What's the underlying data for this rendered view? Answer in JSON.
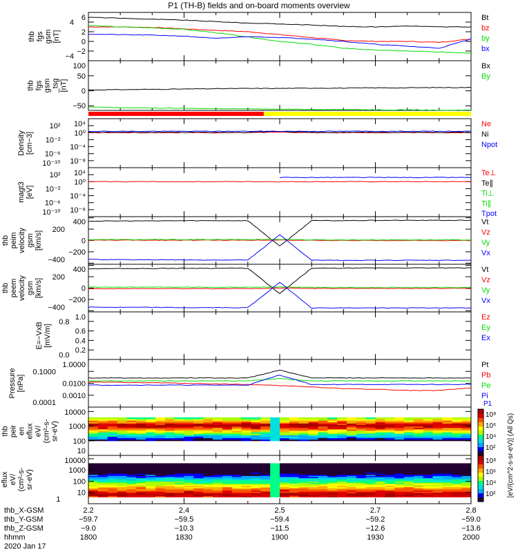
{
  "title": "P1 (TH-B) fields and on-board moments overview",
  "chart_data": {
    "type": "line",
    "x_minutes": [
      0,
      10,
      20,
      30,
      40,
      50,
      60,
      70,
      80,
      90,
      100,
      110,
      120
    ],
    "panels": [
      {
        "id": "fgs",
        "ylabel": [
          "thb",
          "fgs",
          "gsm",
          "[nT]"
        ],
        "scale": "linear",
        "ylim": [
          -4,
          6
        ],
        "ticks": [
          {
            "v": 6,
            "t": "6"
          },
          {
            "v": 4,
            "t": "4"
          },
          {
            "v": 2,
            "t": "2"
          },
          {
            "v": 0,
            "t": "0"
          },
          {
            "v": -2,
            "t": "−2"
          },
          {
            "v": -4,
            "t": "−4"
          }
        ],
        "series": [
          {
            "name": "Bt",
            "color": "#000000",
            "values": [
              5,
              4.8,
              4.6,
              4.4,
              4.1,
              3.8,
              3.6,
              3.4,
              3.1,
              3.0,
              3.2,
              3.0,
              3.0
            ]
          },
          {
            "name": "bz",
            "color": "#ff0000",
            "values": [
              3,
              3,
              2.9,
              2.6,
              2.3,
              2.0,
              1.4,
              0.8,
              0.2,
              0.0,
              0.0,
              -0.2,
              0.5
            ]
          },
          {
            "name": "by",
            "color": "#00dd00",
            "values": [
              3.3,
              3.0,
              2.8,
              2.5,
              1.8,
              0.9,
              0.0,
              -0.6,
              -1.4,
              -1.8,
              -2.0,
              -2.2,
              -2.4
            ]
          },
          {
            "name": "bx",
            "color": "#0000ff",
            "values": [
              1.5,
              1.4,
              1.3,
              1.1,
              0.6,
              1.0,
              0.8,
              0.5,
              0.0,
              -0.6,
              -1.0,
              -1.4,
              0.5
            ]
          }
        ]
      },
      {
        "id": "fgs_dsl",
        "ylabel": [
          "thb",
          "fgs",
          "gsm",
          "_tsg",
          "[nT]"
        ],
        "scale": "linear",
        "ylim": [
          -65,
          100
        ],
        "ticks": [
          {
            "v": 100,
            "t": "100"
          },
          {
            "v": 50,
            "t": "50"
          },
          {
            "v": 0,
            "t": "0"
          },
          {
            "v": -50,
            "t": "−50"
          }
        ],
        "series": [
          {
            "name": "Bx",
            "color": "#000000",
            "values": [
              3,
              4,
              5,
              6,
              7,
              8,
              8,
              9,
              9,
              10,
              10,
              11,
              11
            ]
          },
          {
            "name": "By",
            "color": "#00dd00",
            "values": [
              -54,
              -56,
              -57,
              -58,
              -59,
              -60,
              -61,
              -62,
              -62,
              -63,
              -63,
              -64,
              -64
            ]
          }
        ]
      },
      {
        "id": "density",
        "ylabel": [
          "Density",
          "[cm−3]"
        ],
        "scale": "log",
        "ylim": [
          -10,
          4
        ],
        "ticks": [
          {
            "v": 4,
            "t": "10⁴"
          },
          {
            "v": 2,
            "t": "10²"
          },
          {
            "v": 0,
            "t": "10⁰"
          },
          {
            "v": -2,
            "t": "10⁻²"
          },
          {
            "v": -4,
            "t": "10⁻⁴"
          },
          {
            "v": -6,
            "t": "10⁻⁶"
          },
          {
            "v": -8,
            "t": "10⁻⁸"
          },
          {
            "v": -10,
            "t": "10⁻¹⁰"
          }
        ],
        "series": [
          {
            "name": "Ne",
            "color": "#ff0000",
            "values": [
              0,
              0,
              0,
              0,
              0,
              0,
              0.2,
              0,
              0,
              0,
              0,
              0,
              0
            ]
          },
          {
            "name": "Ni",
            "color": "#000000",
            "values": [
              0.1,
              0.1,
              0.1,
              0.1,
              0.1,
              0.1,
              0.3,
              0.1,
              0.1,
              0.1,
              0.1,
              0.1,
              0.1
            ]
          },
          {
            "name": "Npot",
            "color": "#0000ff",
            "values": [
              0.4,
              0.4,
              0.4,
              0.4,
              0.4,
              0.4,
              0.4,
              0.4,
              0.4,
              0.4,
              0.4,
              0.4,
              0.4
            ]
          }
        ]
      },
      {
        "id": "magt3",
        "ylabel": [
          "magt3",
          "[eV]"
        ],
        "scale": "log",
        "ylim": [
          -10,
          4
        ],
        "ticks": [
          {
            "v": 4,
            "t": "10⁴"
          },
          {
            "v": 2,
            "t": "10²"
          },
          {
            "v": 0,
            "t": "10⁰"
          },
          {
            "v": -2,
            "t": "10⁻²"
          },
          {
            "v": -4,
            "t": "10⁻⁴"
          },
          {
            "v": -6,
            "t": "10⁻⁶"
          },
          {
            "v": -8,
            "t": "10⁻⁸"
          },
          {
            "v": -10,
            "t": "10⁻¹⁰"
          }
        ],
        "series": [
          {
            "name": "Te⊥",
            "color": "#ff0000",
            "values": [
              0,
              0,
              0,
              0,
              0,
              0,
              0,
              0,
              0,
              0,
              0,
              0,
              0
            ]
          },
          {
            "name": "Te∥",
            "color": "#000000",
            "values": [
              null,
              null,
              null,
              null,
              null,
              null,
              null,
              null,
              null,
              null,
              null,
              null,
              null
            ]
          },
          {
            "name": "Ti⊥",
            "color": "#00dd00",
            "values": [
              null,
              null,
              null,
              null,
              null,
              null,
              null,
              null,
              null,
              null,
              null,
              null,
              null
            ]
          },
          {
            "name": "Ti∥",
            "color": "#00dd00",
            "values": [
              null,
              null,
              null,
              null,
              null,
              null,
              null,
              null,
              null,
              null,
              null,
              null,
              null
            ]
          },
          {
            "name": "Tpot",
            "color": "#0000ff",
            "values": [
              null,
              null,
              null,
              null,
              null,
              null,
              1.2,
              1.2,
              1.2,
              1.2,
              1.2,
              1.2,
              1.2
            ]
          }
        ]
      },
      {
        "id": "peim_velocity",
        "ylabel": [
          "thb",
          "peim",
          "velocity",
          "gsm",
          "[km/s]"
        ],
        "scale": "linear",
        "ylim": [
          -420,
          420
        ],
        "ticks": [
          {
            "v": 400,
            "t": "400"
          },
          {
            "v": 200,
            "t": "200"
          },
          {
            "v": 0,
            "t": "0"
          },
          {
            "v": -200,
            "t": "−200"
          },
          {
            "v": -400,
            "t": "−400"
          }
        ],
        "series": [
          {
            "name": "Vt",
            "color": "#000000",
            "values": [
              340,
              345,
              345,
              350,
              350,
              350,
              -100,
              350,
              350,
              355,
              355,
              355,
              355
            ]
          },
          {
            "name": "Vz",
            "color": "#ff0000",
            "values": [
              5,
              5,
              5,
              5,
              5,
              5,
              10,
              0,
              0,
              0,
              0,
              0,
              0
            ]
          },
          {
            "name": "Vy",
            "color": "#00dd00",
            "values": [
              15,
              15,
              15,
              15,
              15,
              15,
              20,
              10,
              10,
              10,
              10,
              10,
              10
            ]
          },
          {
            "name": "Vx",
            "color": "#0000ff",
            "values": [
              -335,
              -340,
              -340,
              -345,
              -345,
              -345,
              100,
              -350,
              -350,
              -350,
              -350,
              -350,
              -350
            ]
          }
        ]
      },
      {
        "id": "peem_velocity",
        "ylabel": [
          "thb",
          "peem",
          "velocity",
          "gsm",
          "[km/s]"
        ],
        "scale": "linear",
        "ylim": [
          -420,
          420
        ],
        "ticks": [
          {
            "v": 400,
            "t": "400"
          },
          {
            "v": 200,
            "t": "200"
          },
          {
            "v": 0,
            "t": "0"
          },
          {
            "v": -200,
            "t": "−200"
          },
          {
            "v": -400,
            "t": "−400"
          }
        ],
        "series": [
          {
            "name": "Vt",
            "color": "#000000",
            "values": [
              340,
              345,
              345,
              350,
              350,
              350,
              -100,
              350,
              350,
              355,
              355,
              355,
              355
            ]
          },
          {
            "name": "Vz",
            "color": "#ff0000",
            "values": [
              -10,
              -10,
              -10,
              -10,
              -10,
              -10,
              0,
              -5,
              -5,
              -5,
              -5,
              -5,
              -5
            ]
          },
          {
            "name": "Vy",
            "color": "#00dd00",
            "values": [
              15,
              15,
              15,
              15,
              15,
              15,
              20,
              10,
              10,
              10,
              10,
              10,
              10
            ]
          },
          {
            "name": "Vx",
            "color": "#0000ff",
            "values": [
              -335,
              -340,
              -340,
              -345,
              -345,
              -345,
              100,
              -350,
              -350,
              -350,
              -350,
              -350,
              -350
            ]
          }
        ]
      },
      {
        "id": "efield",
        "ylabel": [
          "E=−VxB",
          "[mV/m]"
        ],
        "scale": "linear",
        "ylim": [
          0,
          1
        ],
        "ticks": [
          {
            "v": 1,
            "t": "1.0"
          },
          {
            "v": 0.8,
            "t": "0.8"
          },
          {
            "v": 0.6,
            "t": "0.6"
          },
          {
            "v": 0.4,
            "t": "0.4"
          },
          {
            "v": 0.2,
            "t": "0.2"
          },
          {
            "v": 0,
            "t": "0.0"
          }
        ],
        "series": [
          {
            "name": "Ez",
            "color": "#ff0000",
            "values": []
          },
          {
            "name": "Ey",
            "color": "#00dd00",
            "values": []
          },
          {
            "name": "Ex",
            "color": "#0000ff",
            "values": []
          }
        ]
      },
      {
        "id": "pressure",
        "ylabel": [
          "Pressure",
          "[nPa]"
        ],
        "scale": "log",
        "ylim": [
          -4,
          0
        ],
        "ticks": [
          {
            "v": 0,
            "t": "1.0000"
          },
          {
            "v": -1,
            "t": "0.1000"
          },
          {
            "v": -2,
            "t": "0.0100"
          },
          {
            "v": -3,
            "t": "0.0010"
          },
          {
            "v": -4,
            "t": "0.0001"
          }
        ],
        "series": [
          {
            "name": "Pt",
            "color": "#000000",
            "values": [
              -1.55,
              -1.55,
              -1.55,
              -1.55,
              -1.55,
              -1.55,
              -0.9,
              -1.55,
              -1.55,
              -1.55,
              -1.55,
              -1.55,
              -1.55
            ]
          },
          {
            "name": "Pb",
            "color": "#ff0000",
            "values": [
              -1.9,
              -1.92,
              -1.95,
              -2.0,
              -2.05,
              -2.1,
              -2.2,
              -2.3,
              -2.45,
              -2.5,
              -2.6,
              -2.6,
              -2.4
            ]
          },
          {
            "name": "Pe",
            "color": "#00dd00",
            "values": [
              -1.8,
              -1.8,
              -1.8,
              -1.8,
              -1.8,
              -1.8,
              -1.6,
              -1.8,
              -1.8,
              -1.8,
              -1.8,
              -1.8,
              -1.8
            ]
          },
          {
            "name": "Pi",
            "color": "#0000ff",
            "values": [
              -2.15,
              -2.15,
              -2.15,
              -2.15,
              -2.15,
              -2.15,
              -1.3,
              -2.1,
              -2.1,
              -2.1,
              -2.1,
              -2.1,
              -2.1
            ]
          }
        ]
      }
    ],
    "spectrograms": [
      {
        "id": "peir",
        "ylabel": [
          "thb",
          "peir",
          "en",
          "eflux",
          "eV/",
          "(cm²-s-",
          "sr-eV)"
        ],
        "ylim_log": [
          1,
          4.3
        ],
        "ticks": [
          {
            "v": 4,
            "t": "10000"
          },
          {
            "v": 3,
            "t": "1000"
          },
          {
            "v": 2,
            "t": "100"
          },
          {
            "v": 1,
            "t": "10"
          }
        ],
        "energy_range_log": [
          2.0,
          3.6
        ],
        "peak_log": 3.0
      },
      {
        "id": "peer",
        "ylabel": [
          "thb",
          "peer",
          "en",
          "eflux",
          "eV/",
          "(cm²-s-",
          "sr-eV)"
        ],
        "ylim_log": [
          0,
          4.3
        ],
        "ticks": [
          {
            "v": 4,
            "t": "10000"
          },
          {
            "v": 3,
            "t": "1000"
          },
          {
            "v": 2,
            "t": "100"
          },
          {
            "v": 1,
            "t": "10"
          },
          {
            "v": 0,
            "t": "1"
          }
        ],
        "energy_range_log": [
          0.6,
          3.6
        ],
        "peak_log": 0.8
      }
    ],
    "colorbar": {
      "label": "[eV/(cm^2-s-sr-eV)]",
      "extra": "(All Qs)",
      "probe": "P1",
      "ticks": [
        "10²",
        "10⁴",
        "10⁶",
        "10⁸"
      ]
    },
    "flag_bar": [
      {
        "from": 0,
        "to": 55,
        "color": "#ff0000"
      },
      {
        "from": 55,
        "to": 120,
        "color": "#ffff00"
      }
    ],
    "x_axis": {
      "row_labels": [
        "thb_X-GSM",
        "thb_Y-GSM",
        "thb_Z-GSM",
        "hhmm"
      ],
      "date": "2020 Jan 17",
      "ticks": [
        {
          "min": 0,
          "vals": [
            "2.2",
            "−59.7",
            "−9.0",
            "1800"
          ]
        },
        {
          "min": 30,
          "vals": [
            "2.4",
            "−59.5",
            "−10.3",
            "1830"
          ]
        },
        {
          "min": 60,
          "vals": [
            "2.5",
            "−59.4",
            "−11.5",
            "1900"
          ]
        },
        {
          "min": 90,
          "vals": [
            "2.7",
            "−59.2",
            "−12.6",
            "1930"
          ]
        },
        {
          "min": 120,
          "vals": [
            "2.8",
            "−59.0",
            "−13.6",
            "2000"
          ]
        }
      ]
    }
  }
}
